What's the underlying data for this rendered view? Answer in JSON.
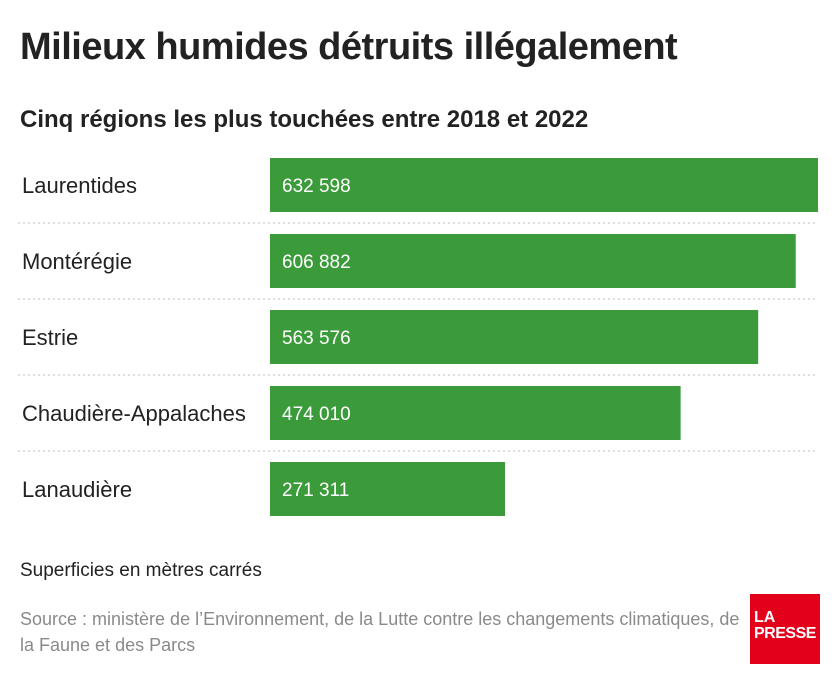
{
  "title": "Milieux humides détruits illégalement",
  "subtitle": "Cinq régions les plus touchées entre 2018 et 2022",
  "note": "Superficies en mètres carrés",
  "source": "Source : ministère de l’Environnement, de la Lutte contre les changements climatiques, de la Faune et des Parcs",
  "logo": {
    "line1": "LA",
    "line2": "PRESSE"
  },
  "colors": {
    "bar": "#3b9b3b",
    "logo": "#e3001b"
  },
  "chart_data": {
    "type": "bar",
    "orientation": "horizontal",
    "categories": [
      "Laurentides",
      "Montérégie",
      "Estrie",
      "Chaudière-Appalaches",
      "Lanaudière"
    ],
    "values": [
      632598,
      606882,
      563576,
      474010,
      271311
    ],
    "value_labels": [
      "632 598",
      "606 882",
      "563 576",
      "474 010",
      "271 311"
    ],
    "grid": false
  }
}
